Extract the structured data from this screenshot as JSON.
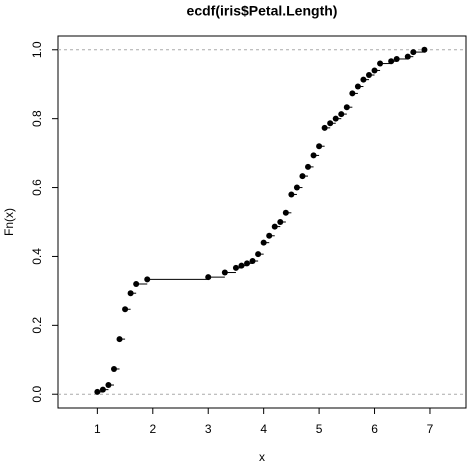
{
  "chart_data": {
    "type": "ecdf",
    "title": "ecdf(iris$Petal.Length)",
    "x_label": "x",
    "y_label": "Fn(x)",
    "x": [
      1,
      1.1,
      1.2,
      1.3,
      1.4,
      1.5,
      1.6,
      1.7,
      1.9,
      3,
      3.3,
      3.5,
      3.6,
      3.7,
      3.8,
      3.9,
      4,
      4.1,
      4.2,
      4.3,
      4.4,
      4.5,
      4.6,
      4.7,
      4.8,
      4.9,
      5,
      5.1,
      5.2,
      5.3,
      5.4,
      5.5,
      5.6,
      5.7,
      5.8,
      5.9,
      6,
      6.1,
      6.3,
      6.4,
      6.6,
      6.7,
      6.9
    ],
    "values": [
      0.0067,
      0.0133,
      0.0267,
      0.0733,
      0.16,
      0.2467,
      0.2933,
      0.32,
      0.3333,
      0.34,
      0.3533,
      0.3667,
      0.3733,
      0.38,
      0.3867,
      0.4067,
      0.44,
      0.46,
      0.4867,
      0.5,
      0.5267,
      0.58,
      0.6,
      0.6333,
      0.66,
      0.6933,
      0.72,
      0.7733,
      0.7867,
      0.8,
      0.8133,
      0.8333,
      0.8733,
      0.8933,
      0.9133,
      0.9267,
      0.94,
      0.96,
      0.9667,
      0.9733,
      0.98,
      0.9933,
      1
    ],
    "color": "#000000",
    "xlim": [
      0.29,
      7.65
    ],
    "ylim": [
      -0.04,
      1.04
    ],
    "xticks": [
      1,
      2,
      3,
      4,
      5,
      6,
      7
    ],
    "yticks": [
      {
        "value": 0,
        "label": "0.0"
      },
      {
        "value": 0.2,
        "label": "0.2"
      },
      {
        "value": 0.4,
        "label": "0.4"
      },
      {
        "value": 0.6,
        "label": "0.6"
      },
      {
        "value": 0.8,
        "label": "0.8"
      },
      {
        "value": 1,
        "label": "1.0"
      }
    ],
    "hlines": [
      0,
      1
    ]
  }
}
